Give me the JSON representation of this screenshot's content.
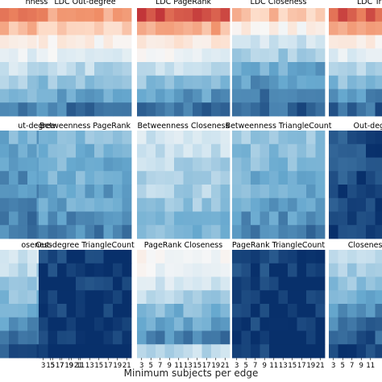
{
  "figure": {
    "xlabel": "Minimum subjects per edge",
    "x_ticks": [
      "3",
      "5",
      "7",
      "9",
      "11",
      "13",
      "15",
      "17",
      "19",
      "21"
    ],
    "partial_x_ticks": [
      "15",
      "17",
      "19",
      "21"
    ]
  },
  "colors": {
    "red_dark": "#b2182b",
    "red_mid": "#ef8a62",
    "red_light": "#fddbc7",
    "neutral": "#f7f7f7",
    "blue_light": "#d1e5f0",
    "blue_mid": "#67a9cf",
    "blue_dark": "#08306b"
  },
  "chart_data": [
    {
      "type": "heatmap",
      "title": "nness",
      "gradient": [
        0.75,
        0.45,
        0.15,
        -0.1,
        -0.25,
        -0.4,
        -0.55,
        -0.7
      ],
      "tick_labels": []
    },
    {
      "type": "heatmap",
      "title": "LDC Out-degree",
      "gradient": [
        0.55,
        0.35,
        0.1,
        -0.1,
        -0.3,
        -0.45,
        -0.6,
        -0.75
      ],
      "tick_labels": []
    },
    {
      "type": "heatmap",
      "title": "LDC PageRank",
      "gradient": [
        0.8,
        0.5,
        0.2,
        -0.05,
        -0.25,
        -0.45,
        -0.6,
        -0.75
      ],
      "tick_labels": []
    },
    {
      "type": "heatmap",
      "title": "LDC Closeness",
      "gradient": [
        0.4,
        0.1,
        -0.2,
        -0.4,
        -0.55,
        -0.65,
        -0.75,
        -0.8
      ],
      "tick_labels": []
    },
    {
      "type": "heatmap",
      "title": "LDC Trian",
      "gradient": [
        0.75,
        0.45,
        0.1,
        -0.15,
        -0.35,
        -0.5,
        -0.65,
        -0.8
      ],
      "tick_labels": []
    },
    {
      "type": "heatmap",
      "title": "ut-degree",
      "gradient": [
        -0.55,
        -0.6,
        -0.65,
        -0.65,
        -0.7,
        -0.7,
        -0.75,
        -0.75
      ],
      "tick_labels": []
    },
    {
      "type": "heatmap",
      "title": "Betweenness PageRank",
      "gradient": [
        -0.45,
        -0.5,
        -0.55,
        -0.55,
        -0.6,
        -0.6,
        -0.65,
        -0.7
      ],
      "tick_labels": []
    },
    {
      "type": "heatmap",
      "title": "Betweenness Closeness",
      "gradient": [
        -0.2,
        -0.25,
        -0.3,
        -0.35,
        -0.35,
        -0.4,
        -0.45,
        -0.5
      ],
      "tick_labels": []
    },
    {
      "type": "heatmap",
      "title": "Betweenness TriangleCount",
      "gradient": [
        -0.4,
        -0.45,
        -0.5,
        -0.55,
        -0.55,
        -0.6,
        -0.65,
        -0.7
      ],
      "tick_labels": []
    },
    {
      "type": "heatmap",
      "title": "Out-degree",
      "gradient": [
        -0.85,
        -0.88,
        -0.9,
        -0.92,
        -0.93,
        -0.94,
        -0.95,
        -0.96
      ],
      "tick_labels": []
    },
    {
      "type": "heatmap",
      "title": "oseness",
      "gradient": [
        -0.2,
        -0.3,
        -0.4,
        -0.5,
        -0.6,
        -0.65,
        -0.75,
        -0.85
      ],
      "tick_labels": [
        "15",
        "17",
        "19",
        "21"
      ]
    },
    {
      "type": "heatmap",
      "title": "Out-degree TriangleCount",
      "gradient": [
        -0.95,
        -0.95,
        -0.96,
        -0.96,
        -0.97,
        -0.97,
        -0.97,
        -0.98
      ],
      "tick_labels": [
        "3",
        "5",
        "7",
        "9",
        "11",
        "13",
        "15",
        "17",
        "19",
        "21"
      ]
    },
    {
      "type": "heatmap",
      "title": "PageRank Closeness",
      "gradient": [
        0.05,
        -0.05,
        -0.2,
        -0.35,
        -0.5,
        -0.6,
        -0.7,
        -0.3
      ],
      "tick_labels": [
        "3",
        "5",
        "7",
        "9",
        "11",
        "13",
        "15",
        "17",
        "19",
        "21"
      ]
    },
    {
      "type": "heatmap",
      "title": "PageRank TriangleCount",
      "gradient": [
        -0.94,
        -0.95,
        -0.95,
        -0.96,
        -0.96,
        -0.97,
        -0.97,
        -0.97
      ],
      "tick_labels": [
        "3",
        "5",
        "7",
        "9",
        "11",
        "13",
        "15",
        "17",
        "19",
        "21"
      ]
    },
    {
      "type": "heatmap",
      "title": "Closeness Tria",
      "gradient": [
        -0.25,
        -0.35,
        -0.45,
        -0.55,
        -0.65,
        -0.75,
        -0.85,
        -0.9
      ],
      "tick_labels": [
        "3",
        "5",
        "7",
        "9",
        "11"
      ]
    }
  ]
}
